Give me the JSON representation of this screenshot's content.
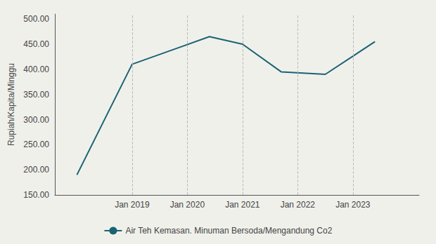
{
  "chart_data": {
    "type": "line",
    "x": [
      2018,
      2019,
      2020.4,
      2021,
      2021.7,
      2022.5,
      2023.4
    ],
    "series": [
      {
        "name": "Air Teh Kemasan. Minuman Bersoda/Mengandung Co2",
        "color": "#1a6373",
        "values": [
          190,
          410,
          465,
          450,
          395,
          390,
          455
        ]
      }
    ],
    "ylabel": "Rupiah/Kapita/Minggu",
    "xlim": [
      2017.6,
      2024.2
    ],
    "xticks": [
      {
        "value": 2019,
        "label": "Jan 2019"
      },
      {
        "value": 2020,
        "label": "Jan 2020"
      },
      {
        "value": 2021,
        "label": "Jan 2021"
      },
      {
        "value": 2022,
        "label": "Jan 2022"
      },
      {
        "value": 2023,
        "label": "Jan 2023"
      }
    ],
    "ylim": [
      150,
      510
    ],
    "yticks": [
      {
        "value": 150.0,
        "label": "150.00"
      },
      {
        "value": 200.0,
        "label": "200.00"
      },
      {
        "value": 250.0,
        "label": "250.00"
      },
      {
        "value": 300.0,
        "label": "300.00"
      },
      {
        "value": 350.0,
        "label": "350.00"
      },
      {
        "value": 400.0,
        "label": "400.00"
      },
      {
        "value": 450.0,
        "label": "450.00"
      },
      {
        "value": 500.0,
        "label": "500.00"
      }
    ],
    "grid": "x",
    "legend": "bottom"
  }
}
